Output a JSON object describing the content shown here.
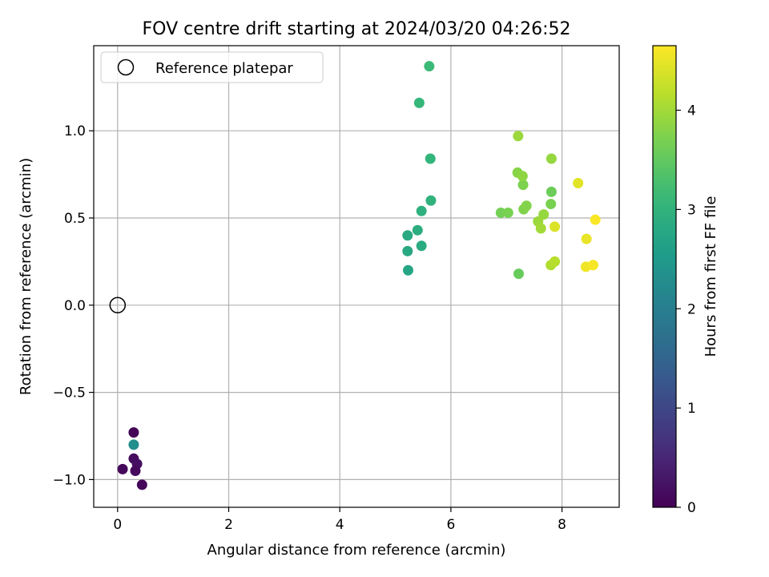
{
  "chart_data": {
    "type": "scatter",
    "title": "FOV centre drift starting at 2024/03/20 04:26:52",
    "xlabel": "Angular distance from reference (arcmin)",
    "ylabel": "Rotation from reference (arcmin)",
    "xlim": [
      -0.43,
      9.03
    ],
    "ylim": [
      -1.159,
      1.488
    ],
    "xticks": [
      0,
      2,
      4,
      6,
      8
    ],
    "xtick_labels": [
      "0",
      "2",
      "4",
      "6",
      "8"
    ],
    "yticks": [
      -1.0,
      -0.5,
      0.0,
      0.5,
      1.0
    ],
    "ytick_labels": [
      "−1.0",
      "−0.5",
      "0.0",
      "0.5",
      "1.0"
    ],
    "grid": true,
    "legend": {
      "position": "top-left",
      "entries": [
        {
          "label": "Reference platepar",
          "marker": "open-circle"
        }
      ]
    },
    "reference_point": {
      "x": 0,
      "y": 0
    },
    "colorbar": {
      "label": "Hours from first FF file",
      "colormap": "viridis",
      "range": [
        0,
        4.65
      ],
      "ticks": [
        0,
        1,
        2,
        3,
        4
      ],
      "tick_labels": [
        "0",
        "1",
        "2",
        "3",
        "4"
      ]
    },
    "points": [
      {
        "x": 0.29,
        "y": -0.73,
        "t": 0.05
      },
      {
        "x": 0.09,
        "y": -0.94,
        "t": 0.1
      },
      {
        "x": 0.29,
        "y": -0.88,
        "t": 0.15
      },
      {
        "x": 0.35,
        "y": -0.91,
        "t": 0.18
      },
      {
        "x": 0.32,
        "y": -0.95,
        "t": 0.12
      },
      {
        "x": 0.44,
        "y": -1.03,
        "t": 0.08
      },
      {
        "x": 0.29,
        "y": -0.8,
        "t": 2.3
      },
      {
        "x": 5.23,
        "y": 0.2,
        "t": 2.75
      },
      {
        "x": 5.22,
        "y": 0.31,
        "t": 2.8
      },
      {
        "x": 5.22,
        "y": 0.4,
        "t": 2.82
      },
      {
        "x": 5.47,
        "y": 0.34,
        "t": 2.85
      },
      {
        "x": 5.4,
        "y": 0.43,
        "t": 2.9
      },
      {
        "x": 5.47,
        "y": 0.54,
        "t": 2.95
      },
      {
        "x": 5.64,
        "y": 0.6,
        "t": 3.0
      },
      {
        "x": 5.63,
        "y": 0.84,
        "t": 3.05
      },
      {
        "x": 5.43,
        "y": 1.16,
        "t": 3.1
      },
      {
        "x": 5.61,
        "y": 1.37,
        "t": 3.15
      },
      {
        "x": 7.22,
        "y": 0.18,
        "t": 3.55
      },
      {
        "x": 6.9,
        "y": 0.53,
        "t": 3.65
      },
      {
        "x": 7.03,
        "y": 0.53,
        "t": 3.7
      },
      {
        "x": 7.31,
        "y": 0.55,
        "t": 3.75
      },
      {
        "x": 7.36,
        "y": 0.57,
        "t": 3.78
      },
      {
        "x": 7.3,
        "y": 0.69,
        "t": 3.72
      },
      {
        "x": 7.2,
        "y": 0.76,
        "t": 3.8
      },
      {
        "x": 7.29,
        "y": 0.74,
        "t": 3.85
      },
      {
        "x": 7.81,
        "y": 0.65,
        "t": 3.6
      },
      {
        "x": 7.8,
        "y": 0.58,
        "t": 3.7
      },
      {
        "x": 7.81,
        "y": 0.84,
        "t": 3.9
      },
      {
        "x": 7.21,
        "y": 0.97,
        "t": 3.95
      },
      {
        "x": 7.67,
        "y": 0.52,
        "t": 3.9
      },
      {
        "x": 7.57,
        "y": 0.48,
        "t": 3.95
      },
      {
        "x": 7.62,
        "y": 0.44,
        "t": 4.0
      },
      {
        "x": 7.87,
        "y": 0.45,
        "t": 4.4
      },
      {
        "x": 7.8,
        "y": 0.23,
        "t": 4.1
      },
      {
        "x": 7.87,
        "y": 0.25,
        "t": 4.15
      },
      {
        "x": 8.29,
        "y": 0.7,
        "t": 4.45
      },
      {
        "x": 8.44,
        "y": 0.38,
        "t": 4.5
      },
      {
        "x": 8.43,
        "y": 0.22,
        "t": 4.55
      },
      {
        "x": 8.56,
        "y": 0.23,
        "t": 4.6
      },
      {
        "x": 8.6,
        "y": 0.49,
        "t": 4.62
      }
    ]
  }
}
